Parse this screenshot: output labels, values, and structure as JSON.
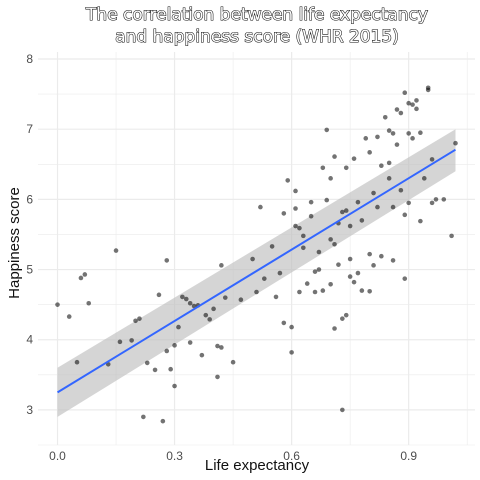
{
  "chart_data": {
    "type": "scatter",
    "title_lines": [
      "The correlation between life expectancy",
      "and happiness score (WHR 2015)"
    ],
    "xlabel": "Life expectancy",
    "ylabel": "Happiness score",
    "xlim": [
      -0.05,
      1.07
    ],
    "ylim": [
      2.5,
      8.1
    ],
    "x_ticks": [
      0.0,
      0.3,
      0.6,
      0.9
    ],
    "x_tick_labels": [
      "0.0",
      "0.3",
      "0.6",
      "0.9"
    ],
    "y_ticks": [
      3,
      4,
      5,
      6,
      7,
      8
    ],
    "y_tick_labels": [
      "3",
      "4",
      "5",
      "6",
      "7",
      "8"
    ],
    "grid": true,
    "legend": "none",
    "colors": {
      "points": "#000000",
      "fit_line": "#3366ff",
      "confidence_band": "#bfbfbf",
      "grid": "#ebebeb"
    },
    "fit": {
      "method": "linear",
      "x_range": [
        0.0,
        1.02
      ],
      "slope": 3.39,
      "intercept": 3.25,
      "ci_lower_at_start": 2.9,
      "ci_upper_at_start": 3.6,
      "ci_lower_at_end": 6.4,
      "ci_upper_at_end": 7.0
    },
    "points": [
      [
        0.0,
        4.5
      ],
      [
        0.03,
        4.33
      ],
      [
        0.05,
        3.68
      ],
      [
        0.06,
        4.88
      ],
      [
        0.07,
        4.93
      ],
      [
        0.08,
        4.52
      ],
      [
        0.13,
        3.65
      ],
      [
        0.15,
        5.27
      ],
      [
        0.16,
        3.97
      ],
      [
        0.19,
        3.99
      ],
      [
        0.2,
        4.27
      ],
      [
        0.21,
        4.3
      ],
      [
        0.22,
        2.9
      ],
      [
        0.23,
        3.67
      ],
      [
        0.25,
        3.57
      ],
      [
        0.26,
        4.64
      ],
      [
        0.27,
        2.84
      ],
      [
        0.28,
        3.84
      ],
      [
        0.28,
        5.13
      ],
      [
        0.29,
        3.58
      ],
      [
        0.3,
        3.92
      ],
      [
        0.3,
        3.34
      ],
      [
        0.31,
        4.18
      ],
      [
        0.32,
        4.61
      ],
      [
        0.33,
        4.58
      ],
      [
        0.34,
        4.52
      ],
      [
        0.34,
        3.96
      ],
      [
        0.35,
        4.48
      ],
      [
        0.36,
        4.49
      ],
      [
        0.37,
        3.78
      ],
      [
        0.38,
        4.35
      ],
      [
        0.39,
        4.29
      ],
      [
        0.4,
        4.44
      ],
      [
        0.41,
        3.47
      ],
      [
        0.41,
        3.91
      ],
      [
        0.42,
        3.89
      ],
      [
        0.42,
        5.06
      ],
      [
        0.43,
        4.6
      ],
      [
        0.45,
        3.68
      ],
      [
        0.47,
        4.57
      ],
      [
        0.5,
        5.15
      ],
      [
        0.51,
        4.68
      ],
      [
        0.52,
        5.89
      ],
      [
        0.53,
        4.87
      ],
      [
        0.55,
        5.33
      ],
      [
        0.56,
        4.61
      ],
      [
        0.57,
        4.95
      ],
      [
        0.58,
        5.8
      ],
      [
        0.58,
        4.24
      ],
      [
        0.59,
        6.27
      ],
      [
        0.6,
        4.18
      ],
      [
        0.6,
        3.82
      ],
      [
        0.61,
        5.62
      ],
      [
        0.61,
        5.87
      ],
      [
        0.61,
        6.12
      ],
      [
        0.62,
        5.59
      ],
      [
        0.62,
        4.68
      ],
      [
        0.63,
        5.48
      ],
      [
        0.63,
        5.31
      ],
      [
        0.64,
        4.8
      ],
      [
        0.65,
        5.76
      ],
      [
        0.65,
        5.96
      ],
      [
        0.66,
        4.68
      ],
      [
        0.66,
        4.97
      ],
      [
        0.67,
        5.25
      ],
      [
        0.67,
        5.0
      ],
      [
        0.68,
        4.7
      ],
      [
        0.68,
        6.45
      ],
      [
        0.69,
        6.99
      ],
      [
        0.69,
        5.99
      ],
      [
        0.7,
        4.79
      ],
      [
        0.7,
        6.3
      ],
      [
        0.7,
        5.43
      ],
      [
        0.71,
        6.61
      ],
      [
        0.71,
        4.16
      ],
      [
        0.71,
        5.36
      ],
      [
        0.72,
        5.66
      ],
      [
        0.72,
        5.07
      ],
      [
        0.73,
        5.82
      ],
      [
        0.73,
        4.3
      ],
      [
        0.73,
        3.0
      ],
      [
        0.74,
        5.84
      ],
      [
        0.74,
        6.45
      ],
      [
        0.74,
        4.35
      ],
      [
        0.75,
        4.9
      ],
      [
        0.75,
        5.15
      ],
      [
        0.75,
        5.62
      ],
      [
        0.76,
        6.58
      ],
      [
        0.76,
        4.82
      ],
      [
        0.77,
        4.95
      ],
      [
        0.77,
        5.96
      ],
      [
        0.78,
        4.7
      ],
      [
        0.78,
        5.7
      ],
      [
        0.79,
        6.87
      ],
      [
        0.8,
        6.67
      ],
      [
        0.8,
        5.22
      ],
      [
        0.8,
        4.69
      ],
      [
        0.81,
        5.06
      ],
      [
        0.81,
        6.09
      ],
      [
        0.82,
        6.89
      ],
      [
        0.82,
        5.89
      ],
      [
        0.83,
        6.48
      ],
      [
        0.83,
        5.19
      ],
      [
        0.84,
        7.17
      ],
      [
        0.85,
        6.98
      ],
      [
        0.85,
        6.52
      ],
      [
        0.85,
        6.3
      ],
      [
        0.86,
        6.94
      ],
      [
        0.86,
        5.89
      ],
      [
        0.86,
        5.13
      ],
      [
        0.87,
        6.78
      ],
      [
        0.87,
        7.28
      ],
      [
        0.88,
        7.23
      ],
      [
        0.88,
        6.13
      ],
      [
        0.89,
        7.52
      ],
      [
        0.89,
        5.78
      ],
      [
        0.89,
        4.87
      ],
      [
        0.9,
        6.94
      ],
      [
        0.9,
        7.37
      ],
      [
        0.9,
        5.95
      ],
      [
        0.91,
        7.35
      ],
      [
        0.91,
        6.87
      ],
      [
        0.92,
        7.29
      ],
      [
        0.92,
        7.41
      ],
      [
        0.93,
        6.95
      ],
      [
        0.93,
        5.69
      ],
      [
        0.94,
        6.3
      ],
      [
        0.95,
        7.59
      ],
      [
        0.95,
        7.56
      ],
      [
        0.96,
        6.57
      ],
      [
        0.96,
        5.95
      ],
      [
        0.97,
        6.0
      ],
      [
        0.99,
        6.0
      ],
      [
        1.01,
        5.48
      ],
      [
        1.02,
        6.8
      ]
    ]
  }
}
